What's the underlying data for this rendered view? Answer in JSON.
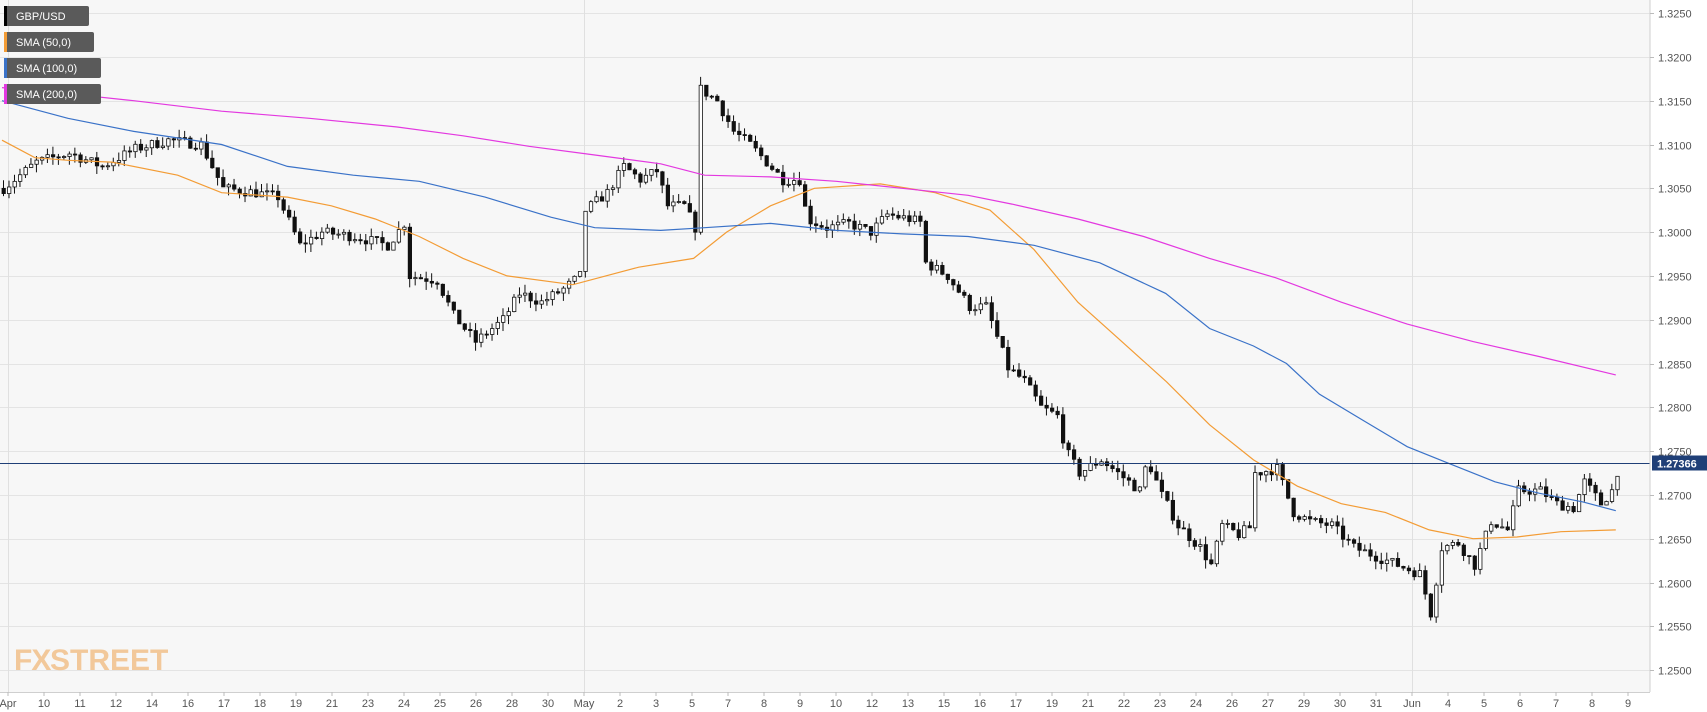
{
  "chart_data": {
    "type": "candlestick",
    "symbol": "GBP/USD",
    "y_axis": {
      "position": "right",
      "range": [
        1.2475,
        1.3265
      ],
      "ticks": [
        "1.3250",
        "1.3200",
        "1.3150",
        "1.3100",
        "1.3050",
        "1.3000",
        "1.2950",
        "1.2900",
        "1.2850",
        "1.2800",
        "1.2750",
        "1.2700",
        "1.2650",
        "1.2600",
        "1.2550",
        "1.2500"
      ]
    },
    "x_axis": {
      "labels": [
        "Apr",
        "10",
        "11",
        "12",
        "14",
        "16",
        "17",
        "18",
        "19",
        "21",
        "23",
        "24",
        "25",
        "26",
        "28",
        "30",
        "May",
        "2",
        "3",
        "5",
        "7",
        "8",
        "9",
        "10",
        "12",
        "13",
        "15",
        "16",
        "17",
        "19",
        "21",
        "22",
        "23",
        "24",
        "26",
        "27",
        "29",
        "30",
        "31",
        "Jun",
        "4",
        "5",
        "6",
        "7",
        "8",
        "9"
      ],
      "major_labels": [
        "Apr",
        "May",
        "Jun"
      ]
    },
    "current_price": {
      "value": 1.27366,
      "label": "1.27366"
    },
    "legend": [
      {
        "label": "GBP/USD",
        "color": "#000000"
      },
      {
        "label": "SMA (50,0)",
        "color": "#f39c35"
      },
      {
        "label": "SMA (100,0)",
        "color": "#3a72c8"
      },
      {
        "label": "SMA (200,0)",
        "color": "#e338e0"
      }
    ],
    "series": [
      {
        "name": "SMA (50,0)",
        "color": "#f39c35",
        "points": [
          [
            0,
            1.3105
          ],
          [
            30,
            1.3085
          ],
          [
            60,
            1.3082
          ],
          [
            100,
            1.308
          ],
          [
            160,
            1.3065
          ],
          [
            200,
            1.3045
          ],
          [
            260,
            1.304
          ],
          [
            300,
            1.303
          ],
          [
            340,
            1.3015
          ],
          [
            380,
            1.2995
          ],
          [
            420,
            1.297
          ],
          [
            460,
            1.295
          ],
          [
            520,
            1.294
          ],
          [
            580,
            1.296
          ],
          [
            630,
            1.297
          ],
          [
            660,
            1.3
          ],
          [
            700,
            1.303
          ],
          [
            740,
            1.305
          ],
          [
            800,
            1.3055
          ],
          [
            850,
            1.3045
          ],
          [
            900,
            1.3025
          ],
          [
            940,
            1.298
          ],
          [
            980,
            1.292
          ],
          [
            1020,
            1.2875
          ],
          [
            1060,
            1.283
          ],
          [
            1100,
            1.278
          ],
          [
            1140,
            1.274
          ],
          [
            1180,
            1.271
          ],
          [
            1220,
            1.269
          ],
          [
            1260,
            1.268
          ],
          [
            1300,
            1.266
          ],
          [
            1340,
            1.265
          ],
          [
            1380,
            1.2652
          ],
          [
            1420,
            1.2658
          ],
          [
            1470,
            1.266
          ]
        ]
      },
      {
        "name": "SMA (100,0)",
        "color": "#3a72c8",
        "points": [
          [
            0,
            1.315
          ],
          [
            60,
            1.313
          ],
          [
            120,
            1.3115
          ],
          [
            200,
            1.31
          ],
          [
            260,
            1.3075
          ],
          [
            320,
            1.3065
          ],
          [
            380,
            1.3058
          ],
          [
            440,
            1.304
          ],
          [
            500,
            1.3017
          ],
          [
            540,
            1.3005
          ],
          [
            600,
            1.3002
          ],
          [
            640,
            1.3005
          ],
          [
            700,
            1.301
          ],
          [
            760,
            1.3002
          ],
          [
            820,
            1.2998
          ],
          [
            880,
            1.2995
          ],
          [
            940,
            1.2985
          ],
          [
            1000,
            1.2965
          ],
          [
            1060,
            1.293
          ],
          [
            1100,
            1.289
          ],
          [
            1140,
            1.287
          ],
          [
            1170,
            1.285
          ],
          [
            1200,
            1.2815
          ],
          [
            1240,
            1.2785
          ],
          [
            1280,
            1.2755
          ],
          [
            1320,
            1.2735
          ],
          [
            1360,
            1.2715
          ],
          [
            1400,
            1.2702
          ],
          [
            1440,
            1.2692
          ],
          [
            1470,
            1.2682
          ]
        ]
      },
      {
        "name": "SMA (200,0)",
        "color": "#e338e0",
        "points": [
          [
            0,
            1.3165
          ],
          [
            60,
            1.3158
          ],
          [
            120,
            1.315
          ],
          [
            200,
            1.3138
          ],
          [
            280,
            1.313
          ],
          [
            360,
            1.312
          ],
          [
            420,
            1.311
          ],
          [
            480,
            1.3098
          ],
          [
            540,
            1.3088
          ],
          [
            600,
            1.3078
          ],
          [
            640,
            1.3065
          ],
          [
            700,
            1.3063
          ],
          [
            760,
            1.3058
          ],
          [
            820,
            1.305
          ],
          [
            880,
            1.3042
          ],
          [
            920,
            1.3032
          ],
          [
            980,
            1.3015
          ],
          [
            1040,
            1.2995
          ],
          [
            1100,
            1.297
          ],
          [
            1160,
            1.2948
          ],
          [
            1220,
            1.292
          ],
          [
            1280,
            1.2895
          ],
          [
            1340,
            1.2875
          ],
          [
            1400,
            1.2858
          ],
          [
            1470,
            1.2837
          ]
        ]
      }
    ],
    "candles_path": [
      [
        0,
        1.305
      ],
      [
        30,
        1.308
      ],
      [
        60,
        1.309
      ],
      [
        90,
        1.3075
      ],
      [
        120,
        1.3095
      ],
      [
        150,
        1.3105
      ],
      [
        180,
        1.31
      ],
      [
        200,
        1.305
      ],
      [
        230,
        1.3045
      ],
      [
        250,
        1.304
      ],
      [
        270,
        1.2985
      ],
      [
        290,
        1.3
      ],
      [
        320,
        1.2995
      ],
      [
        350,
        1.2985
      ],
      [
        365,
        1.301
      ],
      [
        370,
        1.295
      ],
      [
        395,
        1.2945
      ],
      [
        410,
        1.2905
      ],
      [
        430,
        1.2875
      ],
      [
        455,
        1.29
      ],
      [
        470,
        1.293
      ],
      [
        490,
        1.292
      ],
      [
        510,
        1.2935
      ],
      [
        525,
        1.295
      ],
      [
        530,
        1.3025
      ],
      [
        550,
        1.3045
      ],
      [
        565,
        1.3075
      ],
      [
        580,
        1.306
      ],
      [
        595,
        1.307
      ],
      [
        605,
        1.303
      ],
      [
        620,
        1.303
      ],
      [
        630,
        1.3005
      ],
      [
        633,
        1.3165
      ],
      [
        650,
        1.315
      ],
      [
        665,
        1.3115
      ],
      [
        680,
        1.31
      ],
      [
        695,
        1.308
      ],
      [
        710,
        1.306
      ],
      [
        725,
        1.306
      ],
      [
        732,
        1.3015
      ],
      [
        750,
        1.3005
      ],
      [
        770,
        1.301
      ],
      [
        790,
        1.3
      ],
      [
        805,
        1.302
      ],
      [
        825,
        1.3015
      ],
      [
        838,
        1.301
      ],
      [
        840,
        1.2965
      ],
      [
        860,
        1.295
      ],
      [
        880,
        1.2915
      ],
      [
        895,
        1.2915
      ],
      [
        905,
        1.288
      ],
      [
        915,
        1.2845
      ],
      [
        930,
        1.283
      ],
      [
        945,
        1.28
      ],
      [
        960,
        1.279
      ],
      [
        968,
        1.275
      ],
      [
        980,
        1.2725
      ],
      [
        1000,
        1.274
      ],
      [
        1020,
        1.272
      ],
      [
        1035,
        1.2705
      ],
      [
        1042,
        1.274
      ],
      [
        1055,
        1.27
      ],
      [
        1070,
        1.2665
      ],
      [
        1090,
        1.264
      ],
      [
        1100,
        1.262
      ],
      [
        1110,
        1.2665
      ],
      [
        1125,
        1.2655
      ],
      [
        1138,
        1.2665
      ],
      [
        1140,
        1.2725
      ],
      [
        1160,
        1.273
      ],
      [
        1175,
        1.268
      ],
      [
        1190,
        1.267
      ],
      [
        1210,
        1.2665
      ],
      [
        1230,
        1.264
      ],
      [
        1250,
        1.263
      ],
      [
        1270,
        1.262
      ],
      [
        1290,
        1.261
      ],
      [
        1300,
        1.2565
      ],
      [
        1310,
        1.264
      ],
      [
        1325,
        1.2645
      ],
      [
        1340,
        1.262
      ],
      [
        1355,
        1.267
      ],
      [
        1370,
        1.266
      ],
      [
        1380,
        1.2705
      ],
      [
        1400,
        1.2705
      ],
      [
        1415,
        1.269
      ],
      [
        1430,
        1.2685
      ],
      [
        1440,
        1.2715
      ],
      [
        1455,
        1.269
      ],
      [
        1465,
        1.2705
      ],
      [
        1472,
        1.2736
      ]
    ]
  },
  "watermark": {
    "part1": "FX",
    "part2": "STREET"
  }
}
